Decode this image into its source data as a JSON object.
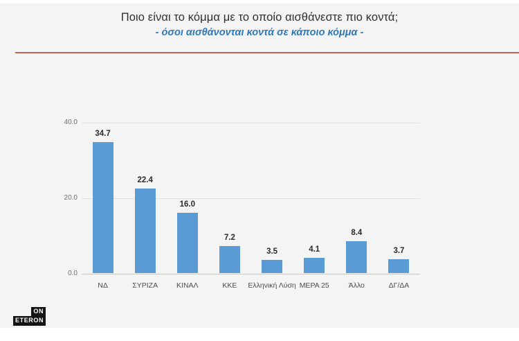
{
  "header": {
    "title": "Ποιο είναι το κόμμα με το οποίο αισθάνεστε πιο κοντά;",
    "subtitle": "- όσοι αισθάνονται κοντά σε κάποιο κόμμα -"
  },
  "logo": {
    "line1": "ON",
    "line2": "ETERON"
  },
  "colors": {
    "bar": "#5b9bd5",
    "accent_line": "#c4604c",
    "subtitle_text": "#2e78be",
    "slide_background": "#f4f4f5",
    "logo_background": "#141414"
  },
  "chart_data": {
    "type": "bar",
    "title": "Ποιο είναι το κόμμα με το οποίο αισθάνεστε πιο κοντά;",
    "subtitle": "- όσοι αισθάνονται κοντά σε κάποιο κόμμα -",
    "categories": [
      "ΝΔ",
      "ΣΥΡΙΖΑ",
      "ΚΙΝΑΛ",
      "ΚΚΕ",
      "Ελληνική Λύση",
      "ΜΕΡΑ 25",
      "Άλλο",
      "ΔΓ/ΔΑ"
    ],
    "values": [
      34.7,
      22.4,
      16.0,
      7.2,
      3.5,
      4.1,
      8.4,
      3.7
    ],
    "value_labels": [
      "34.7",
      "22.4",
      "16.0",
      "7.2",
      "3.5",
      "4.1",
      "8.4",
      "3.7"
    ],
    "xlabel": "",
    "ylabel": "",
    "ylim": [
      0,
      45
    ],
    "y_ticks": [
      0,
      20,
      40
    ],
    "y_tick_labels": [
      "0.0",
      "20.0",
      "40.0"
    ],
    "grid": true,
    "legend": false,
    "data_labels": true
  }
}
